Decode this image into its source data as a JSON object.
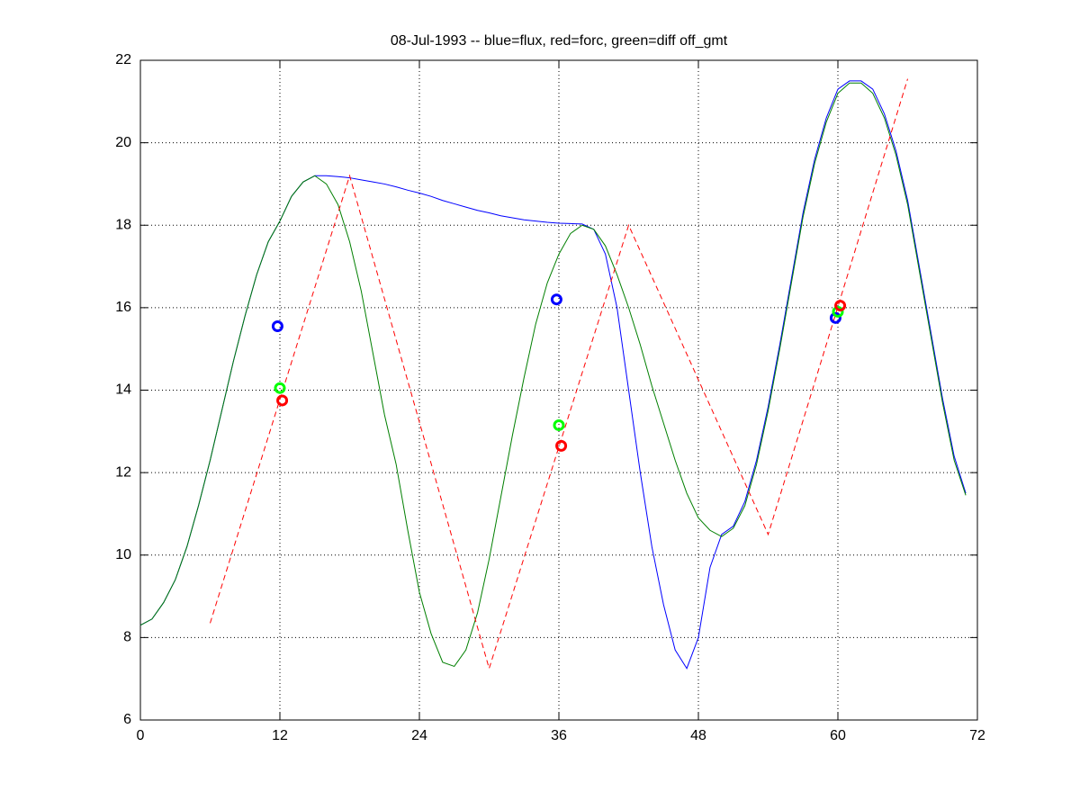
{
  "chart_data": {
    "type": "line",
    "title": "08-Jul-1993 -- blue=flux, red=forc, green=diff off_gmt",
    "xlim": [
      0,
      72
    ],
    "xticks": [
      0,
      12,
      24,
      36,
      48,
      60,
      72
    ],
    "ylim": [
      6,
      22
    ],
    "yticks": [
      6,
      8,
      10,
      12,
      14,
      16,
      18,
      20,
      22
    ],
    "grid": true,
    "series": [
      {
        "color": "#0000ff",
        "style": "solid",
        "x": [
          0,
          1,
          2,
          3,
          4,
          5,
          6,
          7,
          8,
          9,
          10,
          11,
          12,
          13,
          14,
          15,
          16,
          17,
          18,
          19,
          20,
          21,
          22,
          23,
          24,
          25,
          26,
          27,
          28,
          29,
          30,
          31,
          32,
          33,
          34,
          35,
          36,
          37,
          38,
          39,
          40,
          41,
          42,
          43,
          44,
          45,
          46,
          47,
          48,
          49,
          50,
          51,
          52,
          53,
          54,
          55,
          56,
          57,
          58,
          59,
          60,
          61,
          62,
          63,
          64,
          65,
          66,
          67,
          68,
          69,
          70,
          71
        ],
        "values": [
          8.3,
          8.45,
          8.85,
          9.4,
          10.2,
          11.2,
          12.3,
          13.5,
          14.7,
          15.8,
          16.8,
          17.6,
          18.1,
          18.7,
          19.05,
          19.2,
          19.2,
          19.18,
          19.15,
          19.1,
          19.05,
          19.0,
          18.93,
          18.85,
          18.78,
          18.7,
          18.6,
          18.52,
          18.44,
          18.36,
          18.3,
          18.23,
          18.18,
          18.13,
          18.1,
          18.07,
          18.05,
          18.04,
          18.03,
          17.9,
          17.3,
          16.0,
          14.0,
          12.0,
          10.2,
          8.8,
          7.7,
          7.25,
          8.0,
          9.7,
          10.5,
          10.7,
          11.3,
          12.3,
          13.6,
          15.1,
          16.7,
          18.3,
          19.6,
          20.6,
          21.3,
          21.5,
          21.5,
          21.3,
          20.7,
          19.8,
          18.6,
          17.0,
          15.4,
          13.8,
          12.4,
          11.5
        ]
      },
      {
        "color": "#007f00",
        "style": "solid",
        "x": [
          0,
          1,
          2,
          3,
          4,
          5,
          6,
          7,
          8,
          9,
          10,
          11,
          12,
          13,
          14,
          15,
          16,
          17,
          18,
          19,
          20,
          21,
          22,
          23,
          24,
          25,
          26,
          27,
          28,
          29,
          30,
          31,
          32,
          33,
          34,
          35,
          36,
          37,
          38,
          39,
          40,
          41,
          42,
          43,
          44,
          45,
          46,
          47,
          48,
          49,
          50,
          51,
          52,
          53,
          54,
          55,
          56,
          57,
          58,
          59,
          60,
          61,
          62,
          63,
          64,
          65,
          66,
          67,
          68,
          69,
          70,
          71
        ],
        "values": [
          8.3,
          8.45,
          8.85,
          9.4,
          10.2,
          11.2,
          12.3,
          13.5,
          14.7,
          15.8,
          16.8,
          17.6,
          18.1,
          18.7,
          19.05,
          19.2,
          19.0,
          18.5,
          17.6,
          16.4,
          14.9,
          13.4,
          12.2,
          10.6,
          9.1,
          8.1,
          7.4,
          7.3,
          7.7,
          8.6,
          9.9,
          11.4,
          12.9,
          14.3,
          15.6,
          16.6,
          17.3,
          17.8,
          18.0,
          17.9,
          17.5,
          16.8,
          16.0,
          15.1,
          14.1,
          13.2,
          12.3,
          11.5,
          10.9,
          10.6,
          10.45,
          10.65,
          11.2,
          12.2,
          13.5,
          15.0,
          16.6,
          18.2,
          19.5,
          20.5,
          21.2,
          21.45,
          21.45,
          21.2,
          20.6,
          19.7,
          18.5,
          16.9,
          15.3,
          13.7,
          12.3,
          11.45
        ]
      },
      {
        "color": "#ff0000",
        "style": "dashed",
        "x": [
          6,
          18,
          30,
          42,
          54,
          66
        ],
        "values": [
          8.35,
          19.2,
          7.25,
          18.0,
          10.5,
          21.55
        ]
      },
      {
        "color": "#0000ff",
        "style": "marker",
        "x": [
          11.8,
          35.8,
          59.8
        ],
        "values": [
          15.55,
          16.2,
          15.75
        ]
      },
      {
        "color": "#00ff00",
        "style": "marker",
        "x": [
          12.0,
          36.0,
          60.0
        ],
        "values": [
          14.05,
          13.15,
          15.9
        ]
      },
      {
        "color": "#ff0000",
        "style": "marker",
        "x": [
          12.2,
          36.2,
          60.2
        ],
        "values": [
          13.75,
          12.65,
          16.05
        ]
      }
    ]
  }
}
